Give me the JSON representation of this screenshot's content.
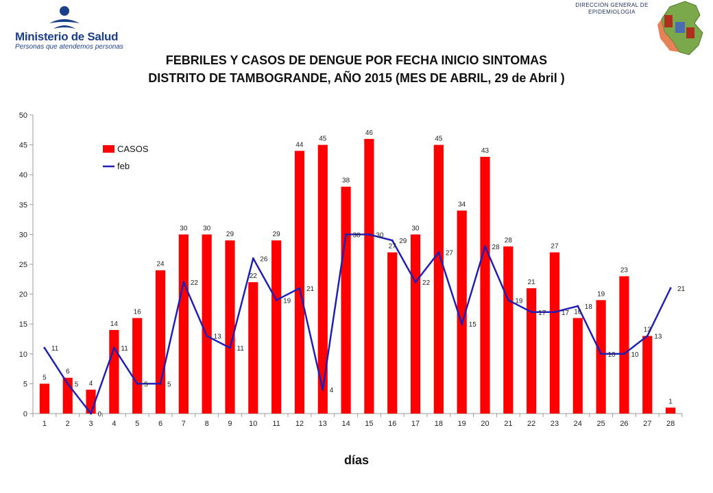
{
  "header": {
    "ministerio_name": "Ministerio de Salud",
    "ministerio_tagline": "Personas que atendemos personas",
    "dge_name_line1": "DIRECCIÓN GENERAL DE",
    "dge_name_line2": "EPIDEMIOLOGIA",
    "title_line1": "FEBRILES Y CASOS DE DENGUE POR FECHA INICIO SINTOMAS",
    "title_line2": "DISTRITO DE TAMBOGRANDE, AÑO 2015 (MES DE ABRIL, 29 de Abril )"
  },
  "colors": {
    "bar": "#ff0000",
    "line": "#1f1fb4",
    "axis": "#999999",
    "ministerio_blue": "#1b3f8b"
  },
  "icons": {
    "left_logo": "ministerio-de-salud-logo",
    "right_logo": "dge-peru-map-logo"
  },
  "chart_data": {
    "type": "bar",
    "categories": [
      "1",
      "2",
      "3",
      "4",
      "5",
      "6",
      "7",
      "8",
      "9",
      "10",
      "11",
      "12",
      "13",
      "14",
      "15",
      "16",
      "17",
      "18",
      "19",
      "20",
      "21",
      "22",
      "23",
      "24",
      "25",
      "26",
      "27",
      "28"
    ],
    "series": [
      {
        "name": "CASOS",
        "type": "bar",
        "values": [
          5,
          6,
          4,
          14,
          16,
          24,
          30,
          30,
          29,
          22,
          29,
          44,
          45,
          38,
          46,
          27,
          30,
          45,
          34,
          43,
          28,
          21,
          27,
          16,
          19,
          23,
          13,
          1
        ]
      },
      {
        "name": "feb",
        "type": "line",
        "values": [
          11,
          5,
          0,
          11,
          5,
          5,
          22,
          13,
          11,
          26,
          19,
          21,
          4,
          30,
          30,
          29,
          22,
          27,
          15,
          28,
          19,
          17,
          17,
          18,
          10,
          10,
          13,
          21
        ]
      }
    ],
    "yticks": [
      0,
      5,
      10,
      15,
      20,
      25,
      30,
      35,
      40,
      45,
      50
    ],
    "ylim": [
      0,
      50
    ],
    "xlabel": "días",
    "ylabel": "",
    "legend_position": "top-left",
    "data_labels": true,
    "grid": false
  }
}
